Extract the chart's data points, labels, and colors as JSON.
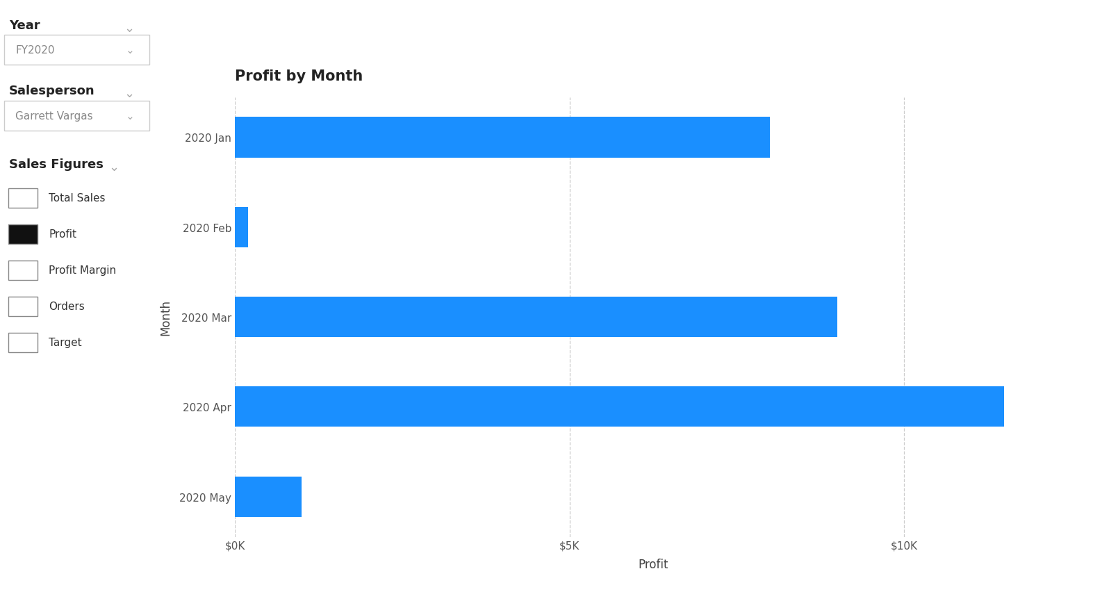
{
  "title": "Profit by Month",
  "months": [
    "2020 Jan",
    "2020 Feb",
    "2020 Mar",
    "2020 Apr",
    "2020 May"
  ],
  "values": [
    8000,
    200,
    9000,
    11500,
    1000
  ],
  "bar_color": "#1a8fff",
  "background_color": "#ffffff",
  "xlabel": "Profit",
  "ylabel": "Month",
  "xlim": [
    0,
    12500
  ],
  "xticks": [
    0,
    5000,
    10000
  ],
  "xtick_labels": [
    "$0K",
    "$5K",
    "$10K"
  ],
  "grid_color": "#cccccc",
  "title_fontsize": 15,
  "axis_label_fontsize": 12,
  "tick_fontsize": 11,
  "bar_height": 0.45,
  "left_panel": {
    "year_label": "Year",
    "year_value": "FY2020",
    "salesperson_label": "Salesperson",
    "salesperson_value": "Garrett Vargas",
    "sales_figures_label": "Sales Figures",
    "checkboxes": [
      "Total Sales",
      "Profit",
      "Profit Margin",
      "Orders",
      "Target"
    ],
    "checked": [
      false,
      true,
      false,
      false,
      false
    ]
  }
}
